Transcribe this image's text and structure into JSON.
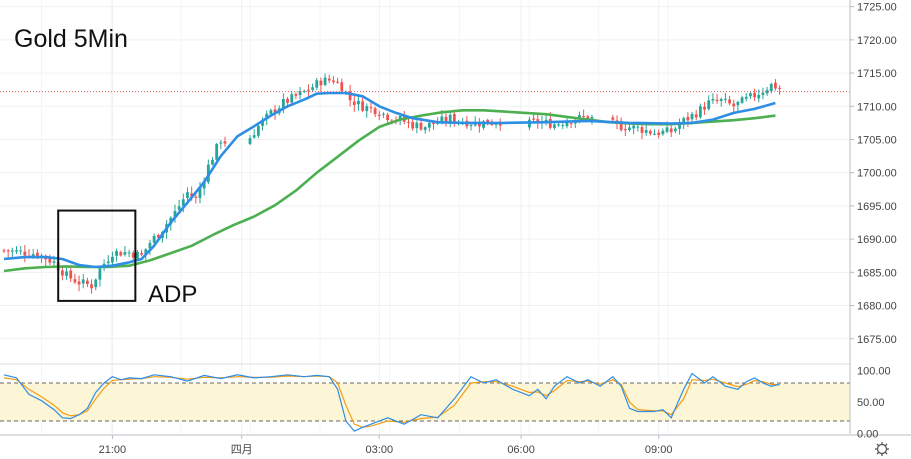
{
  "chart_data": {
    "type": "candlestick",
    "title": "Gold 5Min",
    "annotation": "ADP",
    "grid": true,
    "colors": {
      "up": "#26a69a",
      "down": "#ef5350",
      "ma_fast": "#2e8ee6",
      "ma_slow": "#4caf50",
      "stoch_k": "#2e8ee6",
      "stoch_d": "#f39c12",
      "stoch_band": "#fdf6d6",
      "last_price_line": "#e05a5a"
    },
    "price_axis": {
      "ylim": [
        1671.5,
        1726
      ],
      "ticks": [
        "1725.00",
        "1720.00",
        "1715.00",
        "1710.00",
        "1705.00",
        "1700.00",
        "1695.00",
        "1690.00",
        "1685.00",
        "1680.00",
        "1675.00"
      ],
      "last_price": 1712.2
    },
    "stoch_axis": {
      "ylim": [
        0,
        100
      ],
      "ticks": [
        "100.00",
        "50.00",
        "0.00"
      ],
      "upper": 80,
      "lower": 20
    },
    "x_axis": {
      "range": [
        0,
        200
      ],
      "ticks": [
        {
          "label": "21:00",
          "i": 26
        },
        {
          "label": "四月",
          "i": 57
        },
        {
          "label": "03:00",
          "i": 90
        },
        {
          "label": "06:00",
          "i": 124
        },
        {
          "label": "09:00",
          "i": 157
        }
      ]
    },
    "highlight_box": {
      "x_range": [
        13,
        31.5
      ],
      "y_range": [
        1680.7,
        1694.3
      ]
    },
    "ohlc": [],
    "ma_fast": [
      [
        0,
        1687
      ],
      [
        5,
        1687.3
      ],
      [
        10,
        1687.3
      ],
      [
        14,
        1687.0
      ],
      [
        18,
        1686.1
      ],
      [
        22,
        1685.8
      ],
      [
        26,
        1686.0
      ],
      [
        30,
        1686.5
      ],
      [
        33,
        1687.0
      ],
      [
        36,
        1689.0
      ],
      [
        40,
        1692.5
      ],
      [
        44,
        1695.5
      ],
      [
        48,
        1698.6
      ],
      [
        52,
        1702.5
      ],
      [
        56,
        1705.5
      ],
      [
        60,
        1707.0
      ],
      [
        64,
        1708.6
      ],
      [
        68,
        1710.0
      ],
      [
        72,
        1711.0
      ],
      [
        75,
        1711.9
      ],
      [
        78,
        1712.0
      ],
      [
        82,
        1712.0
      ],
      [
        86,
        1711.5
      ],
      [
        90,
        1710.0
      ],
      [
        94,
        1709.0
      ],
      [
        98,
        1708.2
      ],
      [
        104,
        1707.6
      ],
      [
        110,
        1707.5
      ],
      [
        120,
        1707.5
      ],
      [
        130,
        1707.6
      ],
      [
        140,
        1707.8
      ],
      [
        150,
        1707.5
      ],
      [
        160,
        1707.4
      ],
      [
        165,
        1707.5
      ],
      [
        170,
        1708.0
      ],
      [
        175,
        1709.0
      ],
      [
        180,
        1709.6
      ],
      [
        185,
        1710.5
      ]
    ],
    "ma_slow": [
      [
        0,
        1685.2
      ],
      [
        5,
        1685.6
      ],
      [
        10,
        1685.8
      ],
      [
        15,
        1685.9
      ],
      [
        20,
        1685.8
      ],
      [
        25,
        1685.8
      ],
      [
        30,
        1686.0
      ],
      [
        35,
        1686.8
      ],
      [
        40,
        1687.9
      ],
      [
        45,
        1689.0
      ],
      [
        50,
        1690.6
      ],
      [
        55,
        1692.1
      ],
      [
        60,
        1693.4
      ],
      [
        65,
        1695.1
      ],
      [
        70,
        1697.3
      ],
      [
        75,
        1700.0
      ],
      [
        80,
        1702.4
      ],
      [
        85,
        1704.8
      ],
      [
        90,
        1706.9
      ],
      [
        95,
        1708.0
      ],
      [
        100,
        1708.6
      ],
      [
        105,
        1709.1
      ],
      [
        110,
        1709.4
      ],
      [
        115,
        1709.4
      ],
      [
        120,
        1709.2
      ],
      [
        125,
        1709.0
      ],
      [
        130,
        1708.8
      ],
      [
        135,
        1708.4
      ],
      [
        140,
        1708.0
      ],
      [
        145,
        1707.6
      ],
      [
        150,
        1707.4
      ],
      [
        155,
        1707.3
      ],
      [
        160,
        1707.3
      ],
      [
        165,
        1707.5
      ],
      [
        170,
        1707.7
      ],
      [
        175,
        1707.9
      ],
      [
        180,
        1708.2
      ],
      [
        185,
        1708.6
      ]
    ],
    "stoch_k": [
      [
        0,
        93
      ],
      [
        3,
        88
      ],
      [
        6,
        62
      ],
      [
        9,
        52
      ],
      [
        12,
        38
      ],
      [
        14,
        25
      ],
      [
        16,
        24
      ],
      [
        18,
        30
      ],
      [
        20,
        40
      ],
      [
        22,
        65
      ],
      [
        24,
        80
      ],
      [
        26,
        90
      ],
      [
        28,
        85
      ],
      [
        30,
        88
      ],
      [
        33,
        87
      ],
      [
        36,
        93
      ],
      [
        40,
        90
      ],
      [
        44,
        83
      ],
      [
        48,
        92
      ],
      [
        52,
        87
      ],
      [
        56,
        93
      ],
      [
        60,
        88
      ],
      [
        64,
        90
      ],
      [
        68,
        93
      ],
      [
        72,
        90
      ],
      [
        75,
        92
      ],
      [
        78,
        90
      ],
      [
        80,
        70
      ],
      [
        82,
        20
      ],
      [
        84,
        4
      ],
      [
        86,
        10
      ],
      [
        88,
        15
      ],
      [
        92,
        25
      ],
      [
        96,
        15
      ],
      [
        100,
        30
      ],
      [
        104,
        25
      ],
      [
        108,
        55
      ],
      [
        112,
        90
      ],
      [
        115,
        80
      ],
      [
        118,
        85
      ],
      [
        122,
        70
      ],
      [
        126,
        60
      ],
      [
        128,
        70
      ],
      [
        130,
        55
      ],
      [
        132,
        75
      ],
      [
        135,
        90
      ],
      [
        138,
        80
      ],
      [
        140,
        85
      ],
      [
        143,
        75
      ],
      [
        146,
        90
      ],
      [
        148,
        75
      ],
      [
        150,
        40
      ],
      [
        152,
        35
      ],
      [
        156,
        35
      ],
      [
        158,
        38
      ],
      [
        160,
        25
      ],
      [
        163,
        70
      ],
      [
        165,
        95
      ],
      [
        168,
        80
      ],
      [
        170,
        90
      ],
      [
        173,
        75
      ],
      [
        176,
        70
      ],
      [
        178,
        82
      ],
      [
        180,
        88
      ],
      [
        182,
        80
      ],
      [
        184,
        75
      ],
      [
        186,
        78
      ]
    ],
    "stoch_d": [
      [
        0,
        88
      ],
      [
        3,
        85
      ],
      [
        6,
        70
      ],
      [
        9,
        58
      ],
      [
        12,
        45
      ],
      [
        14,
        33
      ],
      [
        16,
        28
      ],
      [
        18,
        30
      ],
      [
        20,
        36
      ],
      [
        22,
        55
      ],
      [
        24,
        72
      ],
      [
        26,
        84
      ],
      [
        28,
        85
      ],
      [
        30,
        86
      ],
      [
        33,
        87
      ],
      [
        36,
        90
      ],
      [
        40,
        89
      ],
      [
        44,
        86
      ],
      [
        48,
        89
      ],
      [
        52,
        88
      ],
      [
        56,
        90
      ],
      [
        60,
        89
      ],
      [
        64,
        89
      ],
      [
        68,
        91
      ],
      [
        72,
        90
      ],
      [
        75,
        91
      ],
      [
        78,
        90
      ],
      [
        80,
        80
      ],
      [
        82,
        45
      ],
      [
        84,
        15
      ],
      [
        86,
        10
      ],
      [
        88,
        12
      ],
      [
        92,
        20
      ],
      [
        96,
        18
      ],
      [
        100,
        24
      ],
      [
        104,
        26
      ],
      [
        108,
        45
      ],
      [
        112,
        80
      ],
      [
        115,
        82
      ],
      [
        118,
        82
      ],
      [
        122,
        75
      ],
      [
        126,
        65
      ],
      [
        128,
        66
      ],
      [
        130,
        60
      ],
      [
        132,
        68
      ],
      [
        135,
        84
      ],
      [
        138,
        82
      ],
      [
        140,
        83
      ],
      [
        143,
        78
      ],
      [
        146,
        85
      ],
      [
        148,
        78
      ],
      [
        150,
        50
      ],
      [
        152,
        38
      ],
      [
        156,
        36
      ],
      [
        158,
        36
      ],
      [
        160,
        30
      ],
      [
        163,
        55
      ],
      [
        165,
        85
      ],
      [
        168,
        84
      ],
      [
        170,
        86
      ],
      [
        173,
        80
      ],
      [
        176,
        74
      ],
      [
        178,
        78
      ],
      [
        180,
        84
      ],
      [
        182,
        82
      ],
      [
        184,
        78
      ],
      [
        186,
        77
      ]
    ]
  }
}
